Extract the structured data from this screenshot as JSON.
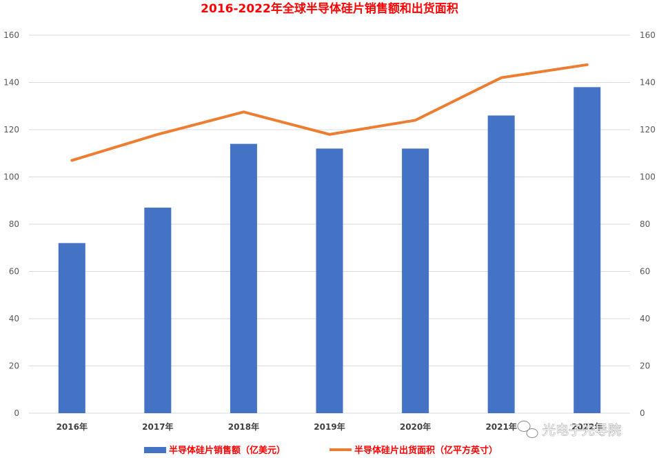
{
  "chart_data": {
    "type": "bar",
    "title": "2016-2022年全球半导体硅片销售额和出货面积",
    "categories": [
      "2016年",
      "2017年",
      "2018年",
      "2019年",
      "2020年",
      "2021年",
      "2022年"
    ],
    "series": [
      {
        "name": "半导体硅片销售额（亿美元）",
        "type": "bar",
        "values": [
          72,
          87,
          114,
          112,
          112,
          126,
          138
        ],
        "axis": "left"
      },
      {
        "name": "半导体硅片出货面积（亿平方英寸）",
        "type": "line",
        "values": [
          107,
          118,
          127.5,
          118,
          124,
          142,
          147.5
        ],
        "axis": "right"
      }
    ],
    "ylim": [
      0,
      160
    ],
    "y2lim": [
      0,
      160
    ],
    "yticks": [
      0,
      20,
      40,
      60,
      80,
      100,
      120,
      140,
      160
    ],
    "grid": true,
    "legend_position": "bottom"
  },
  "colors": {
    "title": "#ff0000",
    "bar": "#4472c4",
    "line": "#ed7d31",
    "legend_text": "#ff0000",
    "grid": "#d9d9d9"
  },
  "watermark": {
    "text": "光电子先导院",
    "icon": "wechat-icon"
  }
}
